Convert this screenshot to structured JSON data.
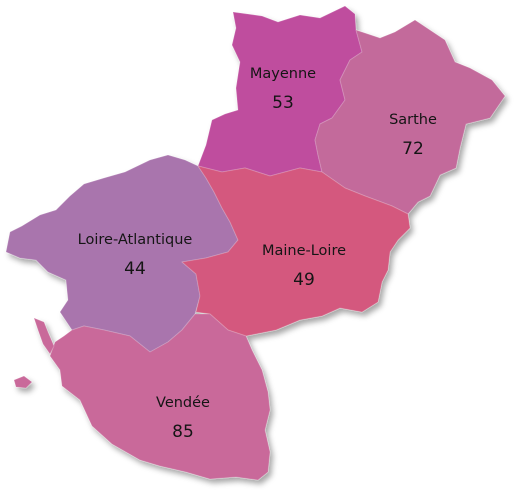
{
  "departments": [
    {
      "key": "mayenne",
      "name": "Mayenne",
      "code": "53",
      "color": "#bf4e9e"
    },
    {
      "key": "sarthe",
      "name": "Sarthe",
      "code": "72",
      "color": "#c36a9b"
    },
    {
      "key": "loire_atlantique",
      "name": "Loire-Atlantique",
      "code": "44",
      "color": "#a974ad"
    },
    {
      "key": "maine_loire",
      "name": "Maine-Loire",
      "code": "49",
      "color": "#d4587e"
    },
    {
      "key": "vendee",
      "name": "Vendée",
      "code": "85",
      "color": "#c9699a"
    }
  ]
}
